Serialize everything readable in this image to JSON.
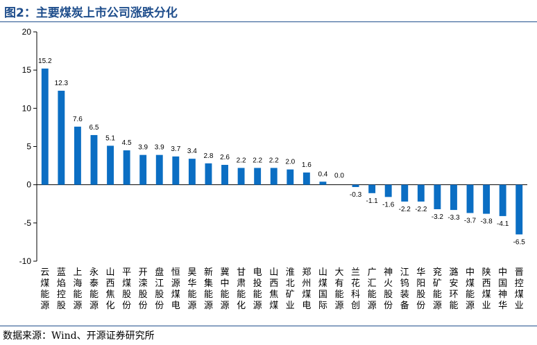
{
  "header": {
    "title": "图2：主要煤炭上市公司涨跌分化"
  },
  "footer": {
    "source": "数据来源：Wind、开源证券研究所"
  },
  "chart_data": {
    "type": "bar",
    "title": "",
    "xlabel": "",
    "ylabel": "",
    "ylim": [
      -10,
      20
    ],
    "yticks": [
      -10,
      -5,
      0,
      5,
      10,
      15,
      20
    ],
    "bar_color": "#0b6ec3",
    "categories": [
      "云煤能源",
      "蓝焰控股",
      "上海能源",
      "永泰能源",
      "山西焦化",
      "平煤股份",
      "开滦股份",
      "盘江股份",
      "恒源煤电",
      "昊华能源",
      "新集能源",
      "冀中能源",
      "甘肃能化",
      "电投能源",
      "山西焦煤",
      "淮北矿业",
      "郑州煤电",
      "山煤国际",
      "大有能源",
      "兰花科创",
      "广汇能源",
      "神火股份",
      "江钨装备",
      "华阳股份",
      "兖矿能源",
      "潞安环能",
      "中煤能源",
      "陕西煤业",
      "中国神华",
      "晋控煤业"
    ],
    "values": [
      15.2,
      12.3,
      7.6,
      6.5,
      5.1,
      4.5,
      3.9,
      3.9,
      3.7,
      3.4,
      2.8,
      2.6,
      2.2,
      2.2,
      2.2,
      2.0,
      1.6,
      0.4,
      0.0,
      -0.3,
      -1.1,
      -1.6,
      -2.2,
      -2.2,
      -3.2,
      -3.3,
      -3.7,
      -3.8,
      -4.1,
      -6.5
    ],
    "value_labels": [
      "15.2",
      "12.3",
      "7.6",
      "6.5",
      "5.1",
      "4.5",
      "3.9",
      "3.9",
      "3.7",
      "3.4",
      "2.8",
      "2.6",
      "2.2",
      "2.2",
      "2.2",
      "2.0",
      "1.6",
      "0.4",
      "0.0",
      "-0.3",
      "-1.1",
      "-1.6",
      "-2.2",
      "-2.2",
      "-3.2",
      "-3.3",
      "-3.7",
      "-3.8",
      "-4.1",
      "-6.5"
    ],
    "grid": false,
    "legend": "none"
  }
}
